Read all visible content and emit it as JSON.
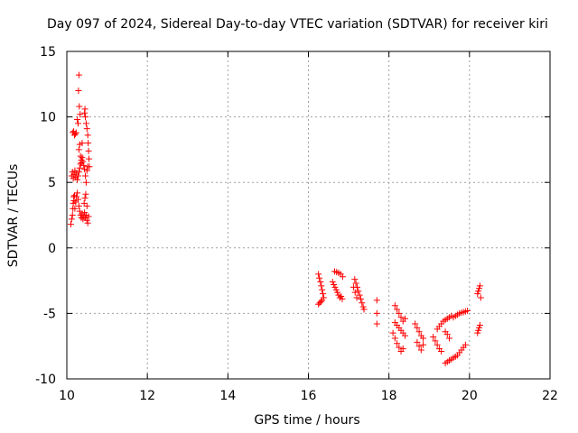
{
  "chart_data": {
    "type": "scatter",
    "title": "Day 097 of 2024, Sidereal Day-to-day VTEC variation (SDTVAR) for receiver kiri",
    "xlabel": "GPS time / hours",
    "ylabel": "SDTVAR / TECUs",
    "xlim": [
      10,
      22
    ],
    "ylim": [
      -10,
      15
    ],
    "xticks": [
      10,
      12,
      14,
      16,
      18,
      20,
      22
    ],
    "yticks": [
      -10,
      -5,
      0,
      5,
      10,
      15
    ],
    "x_tick_labels": [
      "10",
      "12",
      "14",
      "16",
      "18",
      "20",
      "22"
    ],
    "y_tick_labels": [
      "-10",
      "-5",
      "0",
      "5",
      "10",
      "15"
    ],
    "grid": true,
    "marker": "+",
    "color": "#ff0000",
    "series": [
      {
        "name": "SDTVAR",
        "points": [
          [
            10.15,
            8.8
          ],
          [
            10.17,
            8.9
          ],
          [
            10.19,
            8.6
          ],
          [
            10.21,
            8.7
          ],
          [
            10.23,
            8.8
          ],
          [
            10.1,
            1.8
          ],
          [
            10.12,
            2.2
          ],
          [
            10.14,
            2.5
          ],
          [
            10.15,
            3.0
          ],
          [
            10.16,
            3.4
          ],
          [
            10.17,
            3.9
          ],
          [
            10.18,
            3.6
          ],
          [
            10.19,
            4.0
          ],
          [
            10.12,
            5.5
          ],
          [
            10.14,
            5.8
          ],
          [
            10.16,
            5.3
          ],
          [
            10.18,
            5.6
          ],
          [
            10.2,
            5.9
          ],
          [
            10.22,
            5.4
          ],
          [
            10.24,
            5.7
          ],
          [
            10.26,
            5.2
          ],
          [
            10.28,
            5.5
          ],
          [
            10.3,
            5.8
          ],
          [
            10.32,
            6.1
          ],
          [
            10.34,
            6.4
          ],
          [
            10.36,
            6.7
          ],
          [
            10.38,
            6.9
          ],
          [
            10.4,
            6.6
          ],
          [
            10.42,
            6.3
          ],
          [
            10.44,
            6.0
          ],
          [
            10.2,
            3.0
          ],
          [
            10.22,
            3.5
          ],
          [
            10.24,
            3.9
          ],
          [
            10.26,
            4.2
          ],
          [
            10.28,
            3.7
          ],
          [
            10.3,
            3.2
          ],
          [
            10.32,
            2.8
          ],
          [
            10.34,
            2.5
          ],
          [
            10.36,
            2.3
          ],
          [
            10.38,
            2.6
          ],
          [
            10.4,
            2.2
          ],
          [
            10.42,
            2.4
          ],
          [
            10.44,
            2.7
          ],
          [
            10.46,
            2.3
          ],
          [
            10.48,
            2.5
          ],
          [
            10.5,
            2.1
          ],
          [
            10.52,
            1.9
          ],
          [
            10.54,
            2.4
          ],
          [
            10.3,
            13.2
          ],
          [
            10.29,
            12.0
          ],
          [
            10.31,
            10.8
          ],
          [
            10.33,
            10.2
          ],
          [
            10.26,
            9.8
          ],
          [
            10.28,
            9.5
          ],
          [
            10.3,
            7.5
          ],
          [
            10.32,
            7.9
          ],
          [
            10.34,
            7.0
          ],
          [
            10.36,
            6.5
          ],
          [
            10.38,
            8.0
          ],
          [
            10.44,
            10.3
          ],
          [
            10.45,
            10.6
          ],
          [
            10.46,
            10.0
          ],
          [
            10.48,
            9.5
          ],
          [
            10.5,
            9.1
          ],
          [
            10.52,
            8.6
          ],
          [
            10.53,
            8.0
          ],
          [
            10.54,
            7.4
          ],
          [
            10.55,
            6.8
          ],
          [
            10.56,
            6.2
          ],
          [
            10.46,
            5.5
          ],
          [
            10.48,
            5.0
          ],
          [
            10.5,
            5.9
          ],
          [
            10.52,
            6.2
          ],
          [
            10.43,
            3.4
          ],
          [
            10.45,
            3.8
          ],
          [
            10.47,
            4.1
          ],
          [
            10.5,
            3.2
          ],
          [
            16.25,
            -2.0
          ],
          [
            16.27,
            -2.3
          ],
          [
            16.3,
            -2.6
          ],
          [
            16.32,
            -2.9
          ],
          [
            16.34,
            -3.2
          ],
          [
            16.36,
            -3.5
          ],
          [
            16.38,
            -3.8
          ],
          [
            16.25,
            -4.3
          ],
          [
            16.28,
            -4.2
          ],
          [
            16.31,
            -4.1
          ],
          [
            16.34,
            -4.0
          ],
          [
            16.6,
            -2.6
          ],
          [
            16.63,
            -2.8
          ],
          [
            16.66,
            -3.0
          ],
          [
            16.69,
            -3.2
          ],
          [
            16.72,
            -3.4
          ],
          [
            16.75,
            -3.6
          ],
          [
            16.78,
            -3.8
          ],
          [
            16.81,
            -3.7
          ],
          [
            16.84,
            -3.9
          ],
          [
            16.65,
            -1.8
          ],
          [
            16.7,
            -1.85
          ],
          [
            16.75,
            -1.9
          ],
          [
            16.8,
            -2.0
          ],
          [
            16.85,
            -2.2
          ],
          [
            17.15,
            -2.4
          ],
          [
            17.18,
            -2.7
          ],
          [
            17.21,
            -3.0
          ],
          [
            17.24,
            -3.3
          ],
          [
            17.27,
            -3.6
          ],
          [
            17.3,
            -3.9
          ],
          [
            17.33,
            -4.2
          ],
          [
            17.36,
            -4.5
          ],
          [
            17.38,
            -4.7
          ],
          [
            17.12,
            -3.0
          ],
          [
            17.16,
            -3.4
          ],
          [
            17.2,
            -3.8
          ],
          [
            17.7,
            -4.0
          ],
          [
            17.7,
            -5.0
          ],
          [
            17.7,
            -5.8
          ],
          [
            18.15,
            -4.4
          ],
          [
            18.2,
            -4.7
          ],
          [
            18.25,
            -5.0
          ],
          [
            18.3,
            -5.3
          ],
          [
            18.35,
            -5.6
          ],
          [
            18.4,
            -5.4
          ],
          [
            18.15,
            -5.7
          ],
          [
            18.2,
            -5.9
          ],
          [
            18.25,
            -6.1
          ],
          [
            18.3,
            -6.3
          ],
          [
            18.35,
            -6.5
          ],
          [
            18.4,
            -6.7
          ],
          [
            18.1,
            -6.5
          ],
          [
            18.15,
            -6.9
          ],
          [
            18.2,
            -7.3
          ],
          [
            18.25,
            -7.6
          ],
          [
            18.3,
            -7.9
          ],
          [
            18.35,
            -7.7
          ],
          [
            18.65,
            -5.8
          ],
          [
            18.7,
            -6.1
          ],
          [
            18.75,
            -6.4
          ],
          [
            18.8,
            -6.7
          ],
          [
            18.85,
            -6.9
          ],
          [
            18.7,
            -7.2
          ],
          [
            18.75,
            -7.5
          ],
          [
            18.8,
            -7.8
          ],
          [
            18.85,
            -7.4
          ],
          [
            19.1,
            -6.8
          ],
          [
            19.15,
            -7.1
          ],
          [
            19.2,
            -7.4
          ],
          [
            19.25,
            -7.7
          ],
          [
            19.3,
            -7.9
          ],
          [
            19.2,
            -6.2
          ],
          [
            19.25,
            -6.0
          ],
          [
            19.3,
            -5.8
          ],
          [
            19.35,
            -5.6
          ],
          [
            19.4,
            -5.5
          ],
          [
            19.45,
            -5.4
          ],
          [
            19.5,
            -5.3
          ],
          [
            19.55,
            -5.2
          ],
          [
            19.4,
            -6.4
          ],
          [
            19.45,
            -6.6
          ],
          [
            19.5,
            -6.9
          ],
          [
            19.6,
            -5.3
          ],
          [
            19.65,
            -5.2
          ],
          [
            19.7,
            -5.1
          ],
          [
            19.75,
            -5.0
          ],
          [
            19.8,
            -4.95
          ],
          [
            19.85,
            -4.9
          ],
          [
            19.9,
            -4.85
          ],
          [
            19.95,
            -4.8
          ],
          [
            19.4,
            -8.8
          ],
          [
            19.45,
            -8.7
          ],
          [
            19.5,
            -8.6
          ],
          [
            19.55,
            -8.5
          ],
          [
            19.6,
            -8.4
          ],
          [
            19.65,
            -8.3
          ],
          [
            19.7,
            -8.2
          ],
          [
            19.75,
            -8.0
          ],
          [
            19.8,
            -7.8
          ],
          [
            19.85,
            -7.6
          ],
          [
            19.9,
            -7.4
          ],
          [
            20.2,
            -3.5
          ],
          [
            20.22,
            -3.3
          ],
          [
            20.24,
            -3.1
          ],
          [
            20.26,
            -2.9
          ],
          [
            20.28,
            -3.8
          ],
          [
            20.2,
            -6.5
          ],
          [
            20.22,
            -6.3
          ],
          [
            20.24,
            -6.1
          ],
          [
            20.26,
            -5.9
          ]
        ]
      }
    ]
  }
}
